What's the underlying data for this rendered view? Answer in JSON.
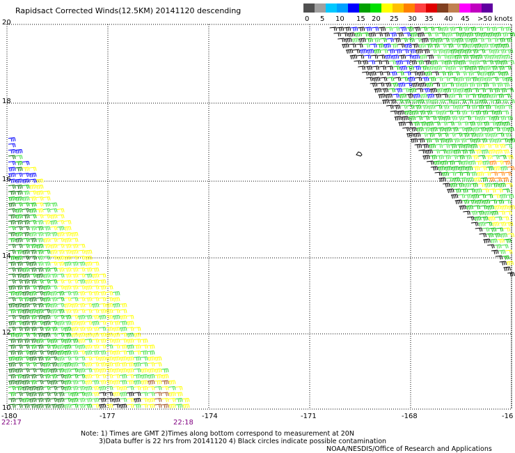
{
  "title": "Rapidsact Corrected Winds(12.5KM) 20141120 descending",
  "colorbar": {
    "colors": [
      "#505050",
      "#a0a0a0",
      "#00c8ff",
      "#00a0ff",
      "#0000ff",
      "#00a000",
      "#00e000",
      "#ffff00",
      "#ffc000",
      "#ff8000",
      "#ff4040",
      "#e00000",
      "#804020",
      "#c08050",
      "#ff00ff",
      "#c000c0",
      "#6000a0"
    ],
    "labels": [
      "0",
      "5",
      "10",
      "15",
      "20",
      "25",
      "30",
      "35",
      "40",
      "45",
      ">50 knots"
    ]
  },
  "lat_labels": [
    "20",
    "18",
    "16",
    "14",
    "12",
    "10"
  ],
  "lon_labels": [
    "-180",
    "-177",
    "-174",
    "-171",
    "-168",
    "-16"
  ],
  "time_labels": [
    "22:17",
    "22:18"
  ],
  "notes": [
    "Note: 1) Times are GMT 2)Times along bottom correspond to measurement at 20N",
    "3)Data buffer is 22 hrs from 20141120 4) Black circles indicate possible contamination",
    "NOAA/NESDIS/Office of Research and Applications"
  ],
  "wind_colors": {
    "dark_green": "#007000",
    "green": "#00c000",
    "light_green": "#40e040",
    "yellow": "#ffff00",
    "blue": "#0000ff",
    "black": "#000000",
    "orange": "#ff8000",
    "brown": "#a05020"
  }
}
